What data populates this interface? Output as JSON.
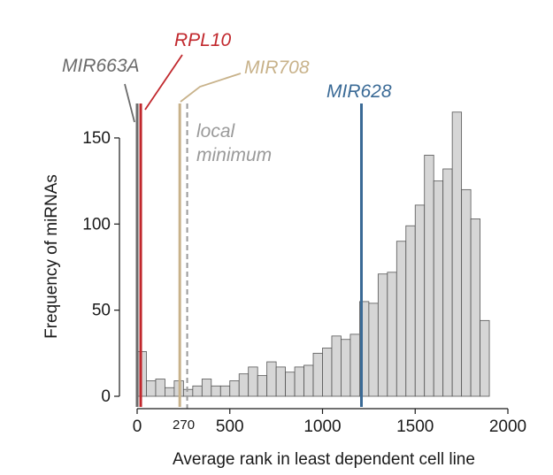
{
  "chart_data": {
    "type": "bar",
    "title": "",
    "xlabel": "Average rank in least dependent cell line",
    "ylabel": "Frequency of miRNAs",
    "xlim": [
      0,
      2000
    ],
    "ylim": [
      0,
      170
    ],
    "xticks": [
      0,
      500,
      1000,
      1500,
      2000
    ],
    "yticks": [
      0,
      50,
      100,
      150
    ],
    "bin_width": 50,
    "bins": [
      {
        "x0": 0,
        "count": 26
      },
      {
        "x0": 50,
        "count": 9
      },
      {
        "x0": 100,
        "count": 10
      },
      {
        "x0": 150,
        "count": 5
      },
      {
        "x0": 200,
        "count": 9
      },
      {
        "x0": 250,
        "count": 4
      },
      {
        "x0": 300,
        "count": 6
      },
      {
        "x0": 350,
        "count": 10
      },
      {
        "x0": 400,
        "count": 6
      },
      {
        "x0": 450,
        "count": 6
      },
      {
        "x0": 500,
        "count": 9
      },
      {
        "x0": 550,
        "count": 13
      },
      {
        "x0": 600,
        "count": 17
      },
      {
        "x0": 650,
        "count": 12
      },
      {
        "x0": 700,
        "count": 20
      },
      {
        "x0": 750,
        "count": 17
      },
      {
        "x0": 800,
        "count": 14
      },
      {
        "x0": 850,
        "count": 17
      },
      {
        "x0": 900,
        "count": 18
      },
      {
        "x0": 950,
        "count": 25
      },
      {
        "x0": 1000,
        "count": 28
      },
      {
        "x0": 1050,
        "count": 35
      },
      {
        "x0": 1100,
        "count": 33
      },
      {
        "x0": 1150,
        "count": 36
      },
      {
        "x0": 1200,
        "count": 55
      },
      {
        "x0": 1250,
        "count": 54
      },
      {
        "x0": 1300,
        "count": 71
      },
      {
        "x0": 1350,
        "count": 72
      },
      {
        "x0": 1400,
        "count": 90
      },
      {
        "x0": 1450,
        "count": 99
      },
      {
        "x0": 1500,
        "count": 111
      },
      {
        "x0": 1550,
        "count": 140
      },
      {
        "x0": 1600,
        "count": 125
      },
      {
        "x0": 1650,
        "count": 132
      },
      {
        "x0": 1700,
        "count": 165
      },
      {
        "x0": 1750,
        "count": 120
      },
      {
        "x0": 1800,
        "count": 103
      },
      {
        "x0": 1850,
        "count": 44
      }
    ],
    "markers": [
      {
        "name": "MIR663A",
        "x": 0,
        "color": "#6b6b6b",
        "style": "solid"
      },
      {
        "name": "RPL10",
        "x": 5,
        "color": "#c1282d",
        "style": "solid"
      },
      {
        "name": "MIR708",
        "x": 230,
        "color": "#c8b28a",
        "style": "solid"
      },
      {
        "name": "MIR628",
        "x": 1210,
        "color": "#3a6a96",
        "style": "solid"
      }
    ],
    "threshold": {
      "x": 270,
      "label": "270",
      "text_line1": "local",
      "text_line2": "minimum",
      "color": "#9a9a9a",
      "style": "dashed"
    },
    "colors": {
      "bar_fill": "#d6d6d6",
      "bar_stroke": "#555555",
      "axis": "#1a1a1a"
    }
  }
}
